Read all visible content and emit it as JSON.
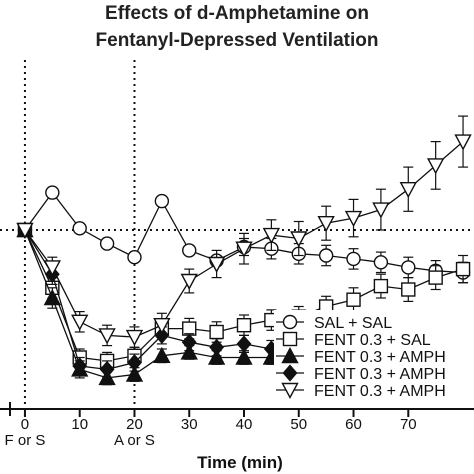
{
  "chart_data": {
    "type": "line",
    "title_line1": "Effects of d-Amphetamine on",
    "title_line2": "Fentanyl-Depressed Ventilation",
    "xlabel": "Time (min)",
    "xlim": [
      -2,
      82
    ],
    "ylim": [
      0,
      200
    ],
    "x_ticks": [
      0,
      10,
      20,
      30,
      40,
      50,
      60,
      70
    ],
    "baseline": 100,
    "event_markers": [
      {
        "x": 0,
        "label": "F or S"
      },
      {
        "x": 20,
        "label": "A or S"
      }
    ],
    "legend_position": "bottom-right",
    "series": [
      {
        "name": "SAL + SAL",
        "marker": "circle",
        "fill": "#ffffff",
        "x": [
          0,
          5,
          10,
          15,
          20,
          25,
          30,
          35,
          40,
          45,
          50,
          55,
          60,
          65,
          70,
          75,
          80
        ],
        "y": [
          100,
          122,
          101,
          92,
          84,
          117,
          88,
          82,
          90,
          89,
          86,
          85,
          83,
          81,
          78,
          76,
          75
        ],
        "err": [
          0,
          0,
          0,
          0,
          0,
          0,
          0,
          0,
          5,
          6,
          6,
          6,
          6,
          6,
          6,
          6,
          6
        ]
      },
      {
        "name": "FENT 0.3 + SAL",
        "marker": "square",
        "fill": "#ffffff",
        "x": [
          0,
          5,
          10,
          15,
          20,
          25,
          30,
          35,
          40,
          45,
          50,
          55,
          60,
          65,
          70,
          75,
          80
        ],
        "y": [
          100,
          66,
          25,
          23,
          26,
          42,
          42,
          40,
          44,
          47,
          49,
          55,
          59,
          67,
          65,
          72,
          77
        ],
        "err": [
          0,
          6,
          5,
          5,
          5,
          5,
          6,
          6,
          6,
          6,
          6,
          6,
          7,
          7,
          7,
          7,
          8
        ]
      },
      {
        "name": "FENT 0.3 + AMPH",
        "marker": "triangle-up",
        "fill": "#111111",
        "x": [
          0,
          5,
          10,
          15,
          20,
          25,
          30,
          35,
          40,
          45,
          50,
          55,
          60,
          65,
          70,
          75,
          80
        ],
        "y": [
          100,
          60,
          18,
          13,
          15,
          26,
          28,
          25,
          25,
          25,
          25,
          25,
          25,
          25,
          26,
          25,
          26
        ],
        "err": [
          0,
          6,
          5,
          4,
          4,
          4,
          4,
          4,
          4,
          4,
          4,
          4,
          4,
          4,
          4,
          4,
          4
        ]
      },
      {
        "name": "FENT 0.3 + AMPH",
        "marker": "diamond",
        "fill": "#111111",
        "x": [
          0,
          5,
          10,
          15,
          20,
          25,
          30,
          35,
          40,
          45,
          50,
          55,
          60,
          65,
          70,
          75,
          80
        ],
        "y": [
          100,
          74,
          20,
          18,
          22,
          38,
          34,
          31,
          33,
          30,
          29,
          28,
          28,
          28,
          29,
          30,
          31
        ],
        "err": [
          0,
          6,
          5,
          5,
          5,
          5,
          5,
          5,
          5,
          5,
          5,
          5,
          5,
          5,
          5,
          5,
          5
        ]
      },
      {
        "name": "FENT 0.3 + AMPH",
        "marker": "triangle-down",
        "fill": "#ffffff",
        "x": [
          0,
          5,
          10,
          15,
          20,
          25,
          30,
          35,
          40,
          45,
          50,
          55,
          60,
          65,
          70,
          75,
          80
        ],
        "y": [
          100,
          78,
          46,
          38,
          37,
          44,
          70,
          80,
          89,
          97,
          95,
          104,
          107,
          112,
          124,
          138,
          152
        ],
        "err": [
          0,
          6,
          6,
          6,
          6,
          7,
          7,
          8,
          9,
          9,
          10,
          10,
          11,
          12,
          13,
          14,
          15
        ]
      }
    ]
  }
}
